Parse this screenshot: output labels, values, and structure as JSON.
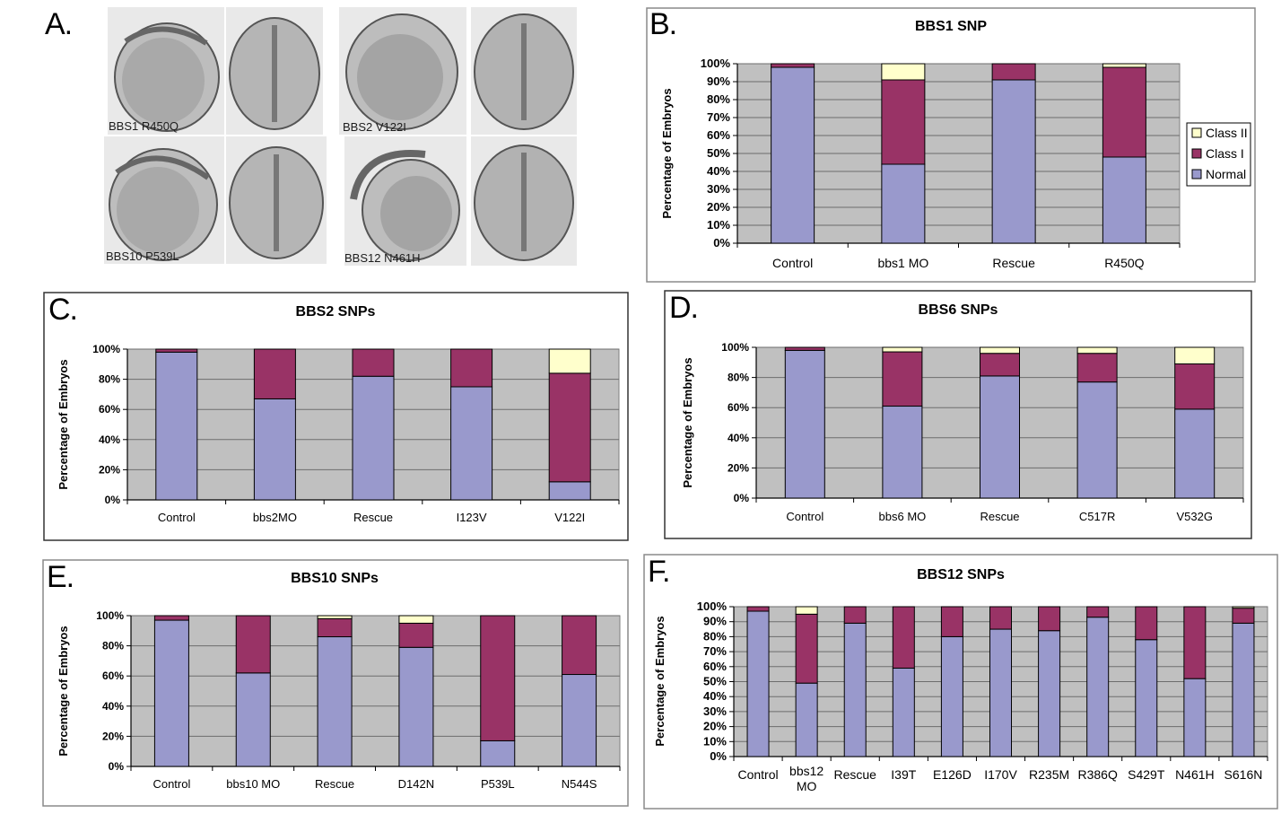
{
  "panels": {
    "a": "A.",
    "b": "B.",
    "c": "C.",
    "d": "D.",
    "e": "E.",
    "f": "F."
  },
  "photos": [
    {
      "label": "BBS1 R450Q"
    },
    {
      "label": "BBS2 V122I"
    },
    {
      "label": "BBS10 P539L"
    },
    {
      "label": "BBS12 N461H"
    }
  ],
  "colors": {
    "normal": "#9999cc",
    "class1": "#993366",
    "class2": "#ffffcc",
    "plot_bg": "#c0c0c0"
  },
  "chart_data": [
    {
      "id": "B",
      "type": "bar",
      "stacked": true,
      "title": "BBS1 SNP",
      "ylabel": "Percentage of Embryos",
      "xlabel": "",
      "ylim": [
        0,
        100
      ],
      "yticks": [
        "0%",
        "10%",
        "20%",
        "30%",
        "40%",
        "50%",
        "60%",
        "70%",
        "80%",
        "90%",
        "100%"
      ],
      "categories": [
        "Control",
        "bbs1 MO",
        "Rescue",
        "R450Q"
      ],
      "series": [
        {
          "name": "Normal",
          "values": [
            98,
            44,
            91,
            48
          ]
        },
        {
          "name": "Class I",
          "values": [
            2,
            47,
            9,
            50
          ]
        },
        {
          "name": "Class II",
          "values": [
            0,
            9,
            0,
            2
          ]
        }
      ],
      "legend": {
        "placement": "right",
        "entries": [
          "Class II",
          "Class I",
          "Normal"
        ]
      },
      "grid": true
    },
    {
      "id": "C",
      "type": "bar",
      "stacked": true,
      "title": "BBS2 SNPs",
      "ylabel": "Percentage of Embryos",
      "xlabel": "",
      "ylim": [
        0,
        100
      ],
      "yticks": [
        "0%",
        "20%",
        "40%",
        "60%",
        "80%",
        "100%"
      ],
      "categories": [
        "Control",
        "bbs2MO",
        "Rescue",
        "I123V",
        "V122I"
      ],
      "series": [
        {
          "values": [
            98,
            67,
            82,
            75,
            12
          ]
        },
        {
          "values": [
            2,
            33,
            18,
            25,
            72
          ]
        },
        {
          "values": [
            0,
            0,
            0,
            0,
            16
          ]
        }
      ],
      "grid": true
    },
    {
      "id": "D",
      "type": "bar",
      "stacked": true,
      "title": "BBS6 SNPs",
      "ylabel": "Percentage of Embryos",
      "xlabel": "",
      "ylim": [
        0,
        100
      ],
      "yticks": [
        "0%",
        "20%",
        "40%",
        "60%",
        "80%",
        "100%"
      ],
      "categories": [
        "Control",
        "bbs6 MO",
        "Rescue",
        "C517R",
        "V532G"
      ],
      "series": [
        {
          "values": [
            98,
            61,
            81,
            77,
            59
          ]
        },
        {
          "values": [
            2,
            36,
            15,
            19,
            30
          ]
        },
        {
          "values": [
            0,
            3,
            4,
            4,
            11
          ]
        }
      ],
      "grid": true
    },
    {
      "id": "E",
      "type": "bar",
      "stacked": true,
      "title": "BBS10 SNPs",
      "ylabel": "Percentage of Embryos",
      "xlabel": "",
      "ylim": [
        0,
        100
      ],
      "yticks": [
        "0%",
        "20%",
        "40%",
        "60%",
        "80%",
        "100%"
      ],
      "categories": [
        "Control",
        "bbs10 MO",
        "Rescue",
        "D142N",
        "P539L",
        "N544S"
      ],
      "series": [
        {
          "values": [
            97,
            62,
            86,
            79,
            17,
            61
          ]
        },
        {
          "values": [
            3,
            38,
            12,
            16,
            83,
            39
          ]
        },
        {
          "values": [
            0,
            0,
            2,
            5,
            0,
            0
          ]
        }
      ],
      "grid": true
    },
    {
      "id": "F",
      "type": "bar",
      "stacked": true,
      "title": "BBS12 SNPs",
      "ylabel": "Percentage of Embryos",
      "xlabel": "",
      "ylim": [
        0,
        100
      ],
      "yticks": [
        "0%",
        "10%",
        "20%",
        "30%",
        "40%",
        "50%",
        "60%",
        "70%",
        "80%",
        "90%",
        "100%"
      ],
      "categories": [
        "Control",
        "bbs12 MO",
        "Rescue",
        "I39T",
        "E126D",
        "I170V",
        "R235M",
        "R386Q",
        "S429T",
        "N461H",
        "S616N"
      ],
      "series": [
        {
          "values": [
            97,
            49,
            89,
            59,
            80,
            85,
            84,
            93,
            78,
            52,
            89
          ]
        },
        {
          "values": [
            3,
            46,
            11,
            41,
            20,
            15,
            16,
            7,
            22,
            48,
            10
          ]
        },
        {
          "values": [
            0,
            5,
            0,
            0,
            0,
            0,
            0,
            0,
            0,
            0,
            1
          ]
        }
      ],
      "grid": true
    }
  ]
}
